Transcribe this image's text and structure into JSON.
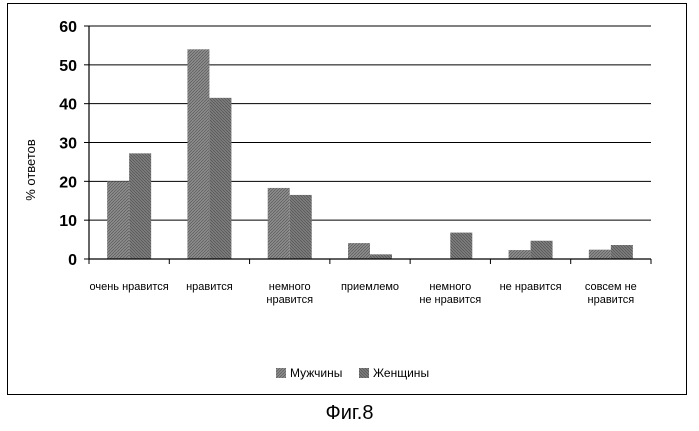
{
  "chart_data": {
    "type": "bar",
    "categories": [
      [
        "очень нравится"
      ],
      [
        "нравится"
      ],
      [
        "немного",
        "нравится"
      ],
      [
        "приемлемо"
      ],
      [
        "немного",
        "не нравится"
      ],
      [
        "не нравится"
      ],
      [
        "совсем не",
        "нравится"
      ]
    ],
    "series": [
      {
        "name": "Мужчины",
        "values": [
          20,
          54,
          18.3,
          4.1,
          0,
          2.3,
          2.4
        ],
        "color": "#8a8a8a"
      },
      {
        "name": "Женщины",
        "values": [
          27.2,
          41.5,
          16.5,
          1.2,
          6.8,
          4.7,
          3.6
        ],
        "color": "#7a7a7a"
      }
    ],
    "ylabel": "% ответов",
    "ylim": [
      0,
      60
    ],
    "yticks": [
      0,
      10,
      20,
      30,
      40,
      50,
      60
    ],
    "grid": true,
    "legend": "bottom"
  },
  "caption": "Фиг.8"
}
